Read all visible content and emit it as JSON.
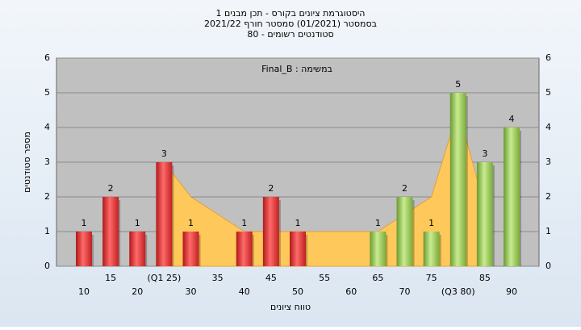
{
  "chart_data": {
    "type": "bar",
    "title": "היסטוגרמת ציונים בקורס - תכן מבנים 1",
    "subtitle": "בסמסטר (01/2021) סמסטר חורף 2021/22",
    "subtitle2": "סטודנטים רשומים - 80",
    "annotation": "במשימה : Final_B",
    "x_label": "טווח ציונים",
    "y_label": "מספר סטודנטים",
    "categories": [
      "10",
      "15",
      "20",
      "(Q1 25)",
      "30",
      "35",
      "40",
      "45",
      "50",
      "55",
      "60",
      "65",
      "70",
      "75",
      "(Q3 80)",
      "85",
      "90"
    ],
    "values": [
      1,
      2,
      1,
      3,
      1,
      0,
      1,
      2,
      1,
      0,
      0,
      1,
      2,
      1,
      5,
      3,
      4
    ],
    "colors": [
      "red",
      "red",
      "red",
      "red",
      "red",
      "red",
      "red",
      "red",
      "red",
      "red",
      "red",
      "green",
      "green",
      "green",
      "green",
      "green",
      "green"
    ],
    "area": {
      "color": "#ffc85a",
      "values": [
        null,
        null,
        null,
        3,
        2,
        1.5,
        1,
        1,
        1,
        1,
        1,
        1,
        1.5,
        2,
        4.5,
        1.7,
        null
      ]
    },
    "ylim": [
      0,
      6
    ],
    "yticks": [
      0,
      1,
      2,
      3,
      4,
      5,
      6
    ],
    "grid": true
  }
}
